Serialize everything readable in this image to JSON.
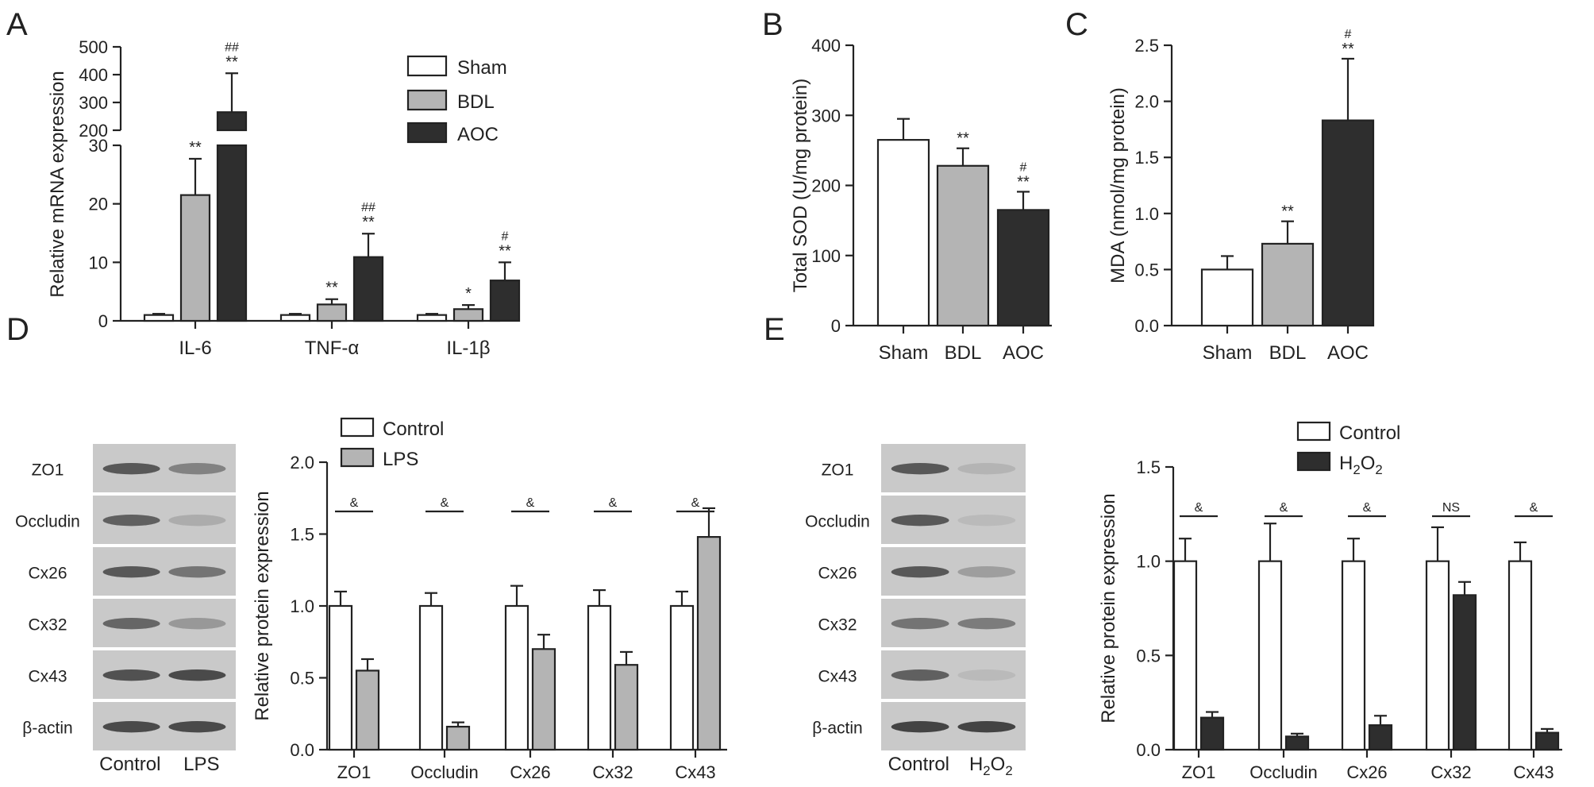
{
  "colors": {
    "white": "#ffffff",
    "gray": "#b4b4b4",
    "dark": "#2e2e2e",
    "axis": "#222222",
    "blot_bg": "#c9c9c9",
    "band": "#3c3c3c"
  },
  "chart_data": [
    {
      "panel": "A",
      "type": "bar",
      "ylabel": "Relative mRNA expression",
      "categories": [
        "IL-6",
        "TNF-α",
        "IL-1β"
      ],
      "axis_break": {
        "lower": [
          0,
          30
        ],
        "upper": [
          200,
          500
        ]
      },
      "yticks_lower": [
        "0",
        "10",
        "20",
        "30"
      ],
      "yticks_upper": [
        "200",
        "300",
        "400",
        "500"
      ],
      "legend": [
        "Sham",
        "BDL",
        "AOC"
      ],
      "series": [
        {
          "name": "Sham",
          "color": "white",
          "values": [
            1,
            1,
            1
          ],
          "errors": [
            0.2,
            0.2,
            0.2
          ],
          "marks": [
            "",
            "",
            ""
          ]
        },
        {
          "name": "BDL",
          "color": "gray",
          "values": [
            21.5,
            2.8,
            2.0
          ],
          "errors": [
            6.2,
            0.9,
            0.7
          ],
          "marks": [
            "**",
            "**",
            "*"
          ]
        },
        {
          "name": "AOC",
          "color": "dark",
          "values": [
            265,
            10.9,
            6.9
          ],
          "errors": [
            140,
            4.0,
            3.1
          ],
          "marks": [
            "**",
            "**",
            "**"
          ],
          "marks2": [
            "##",
            "##",
            "#"
          ]
        }
      ]
    },
    {
      "panel": "B",
      "type": "bar",
      "ylabel": "Total SOD (U/mg protein)",
      "categories": [
        "Sham",
        "BDL",
        "AOC"
      ],
      "ylim": [
        0,
        400
      ],
      "yticks": [
        "0",
        "100",
        "200",
        "300",
        "400"
      ],
      "values": [
        265,
        228,
        165
      ],
      "errors": [
        30,
        25,
        26
      ],
      "colors": [
        "white",
        "gray",
        "dark"
      ],
      "marks": [
        "",
        "**",
        "**"
      ],
      "marks2": [
        "",
        "",
        "#"
      ]
    },
    {
      "panel": "C",
      "type": "bar",
      "ylabel": "MDA (nmol/mg protein)",
      "categories": [
        "Sham",
        "BDL",
        "AOC"
      ],
      "ylim": [
        0,
        2.5
      ],
      "yticks": [
        "0.0",
        "0.5",
        "1.0",
        "1.5",
        "2.0",
        "2.5"
      ],
      "values": [
        0.5,
        0.73,
        1.83
      ],
      "errors": [
        0.12,
        0.2,
        0.55
      ],
      "colors": [
        "white",
        "gray",
        "dark"
      ],
      "marks": [
        "",
        "**",
        "**"
      ],
      "marks2": [
        "",
        "",
        "#"
      ]
    },
    {
      "panel": "D",
      "type": "bar",
      "ylabel": "Relative protein expression",
      "categories": [
        "ZO1",
        "Occludin",
        "Cx26",
        "Cx32",
        "Cx43"
      ],
      "ylim": [
        0,
        2.0
      ],
      "yticks": [
        "0.0",
        "0.5",
        "1.0",
        "1.5",
        "2.0"
      ],
      "legend": [
        "Control",
        "LPS"
      ],
      "series": [
        {
          "name": "Control",
          "color": "white",
          "values": [
            1.0,
            1.0,
            1.0,
            1.0,
            1.0
          ],
          "errors": [
            0.1,
            0.09,
            0.14,
            0.11,
            0.1
          ]
        },
        {
          "name": "LPS",
          "color": "gray",
          "values": [
            0.55,
            0.16,
            0.7,
            0.59,
            1.48
          ],
          "errors": [
            0.08,
            0.03,
            0.1,
            0.09,
            0.2
          ]
        }
      ],
      "significance": [
        "&",
        "&",
        "&",
        "&",
        "&"
      ]
    },
    {
      "panel": "E",
      "type": "bar",
      "ylabel": "Relative protein expression",
      "categories": [
        "ZO1",
        "Occludin",
        "Cx26",
        "Cx32",
        "Cx43"
      ],
      "ylim": [
        0,
        1.5
      ],
      "yticks": [
        "0.0",
        "0.5",
        "1.0",
        "1.5"
      ],
      "legend": [
        "Control",
        "H2O2"
      ],
      "series": [
        {
          "name": "Control",
          "color": "white",
          "values": [
            1.0,
            1.0,
            1.0,
            1.0,
            1.0
          ],
          "errors": [
            0.12,
            0.2,
            0.12,
            0.18,
            0.1
          ]
        },
        {
          "name": "H2O2",
          "color": "dark",
          "values": [
            0.17,
            0.07,
            0.13,
            0.82,
            0.09
          ],
          "errors": [
            0.03,
            0.015,
            0.05,
            0.07,
            0.02
          ]
        }
      ],
      "significance": [
        "&",
        "&",
        "&",
        "NS",
        "&"
      ]
    }
  ],
  "panel_letters": [
    "A",
    "B",
    "C",
    "D",
    "E"
  ],
  "blots": {
    "D": {
      "rows": [
        "ZO1",
        "Occludin",
        "Cx26",
        "Cx32",
        "Cx43",
        "β-actin"
      ],
      "lanes": [
        "Control",
        "LPS"
      ],
      "band_intensity": [
        [
          0.8,
          0.5
        ],
        [
          0.75,
          0.2
        ],
        [
          0.8,
          0.6
        ],
        [
          0.7,
          0.35
        ],
        [
          0.85,
          0.9
        ],
        [
          0.9,
          0.9
        ]
      ]
    },
    "E": {
      "rows": [
        "ZO1",
        "Occludin",
        "Cx26",
        "Cx32",
        "Cx43",
        "β-actin"
      ],
      "lanes": [
        "Control",
        "H2O2"
      ],
      "band_intensity": [
        [
          0.8,
          0.15
        ],
        [
          0.8,
          0.1
        ],
        [
          0.8,
          0.3
        ],
        [
          0.6,
          0.55
        ],
        [
          0.75,
          0.1
        ],
        [
          0.95,
          0.95
        ]
      ]
    }
  }
}
